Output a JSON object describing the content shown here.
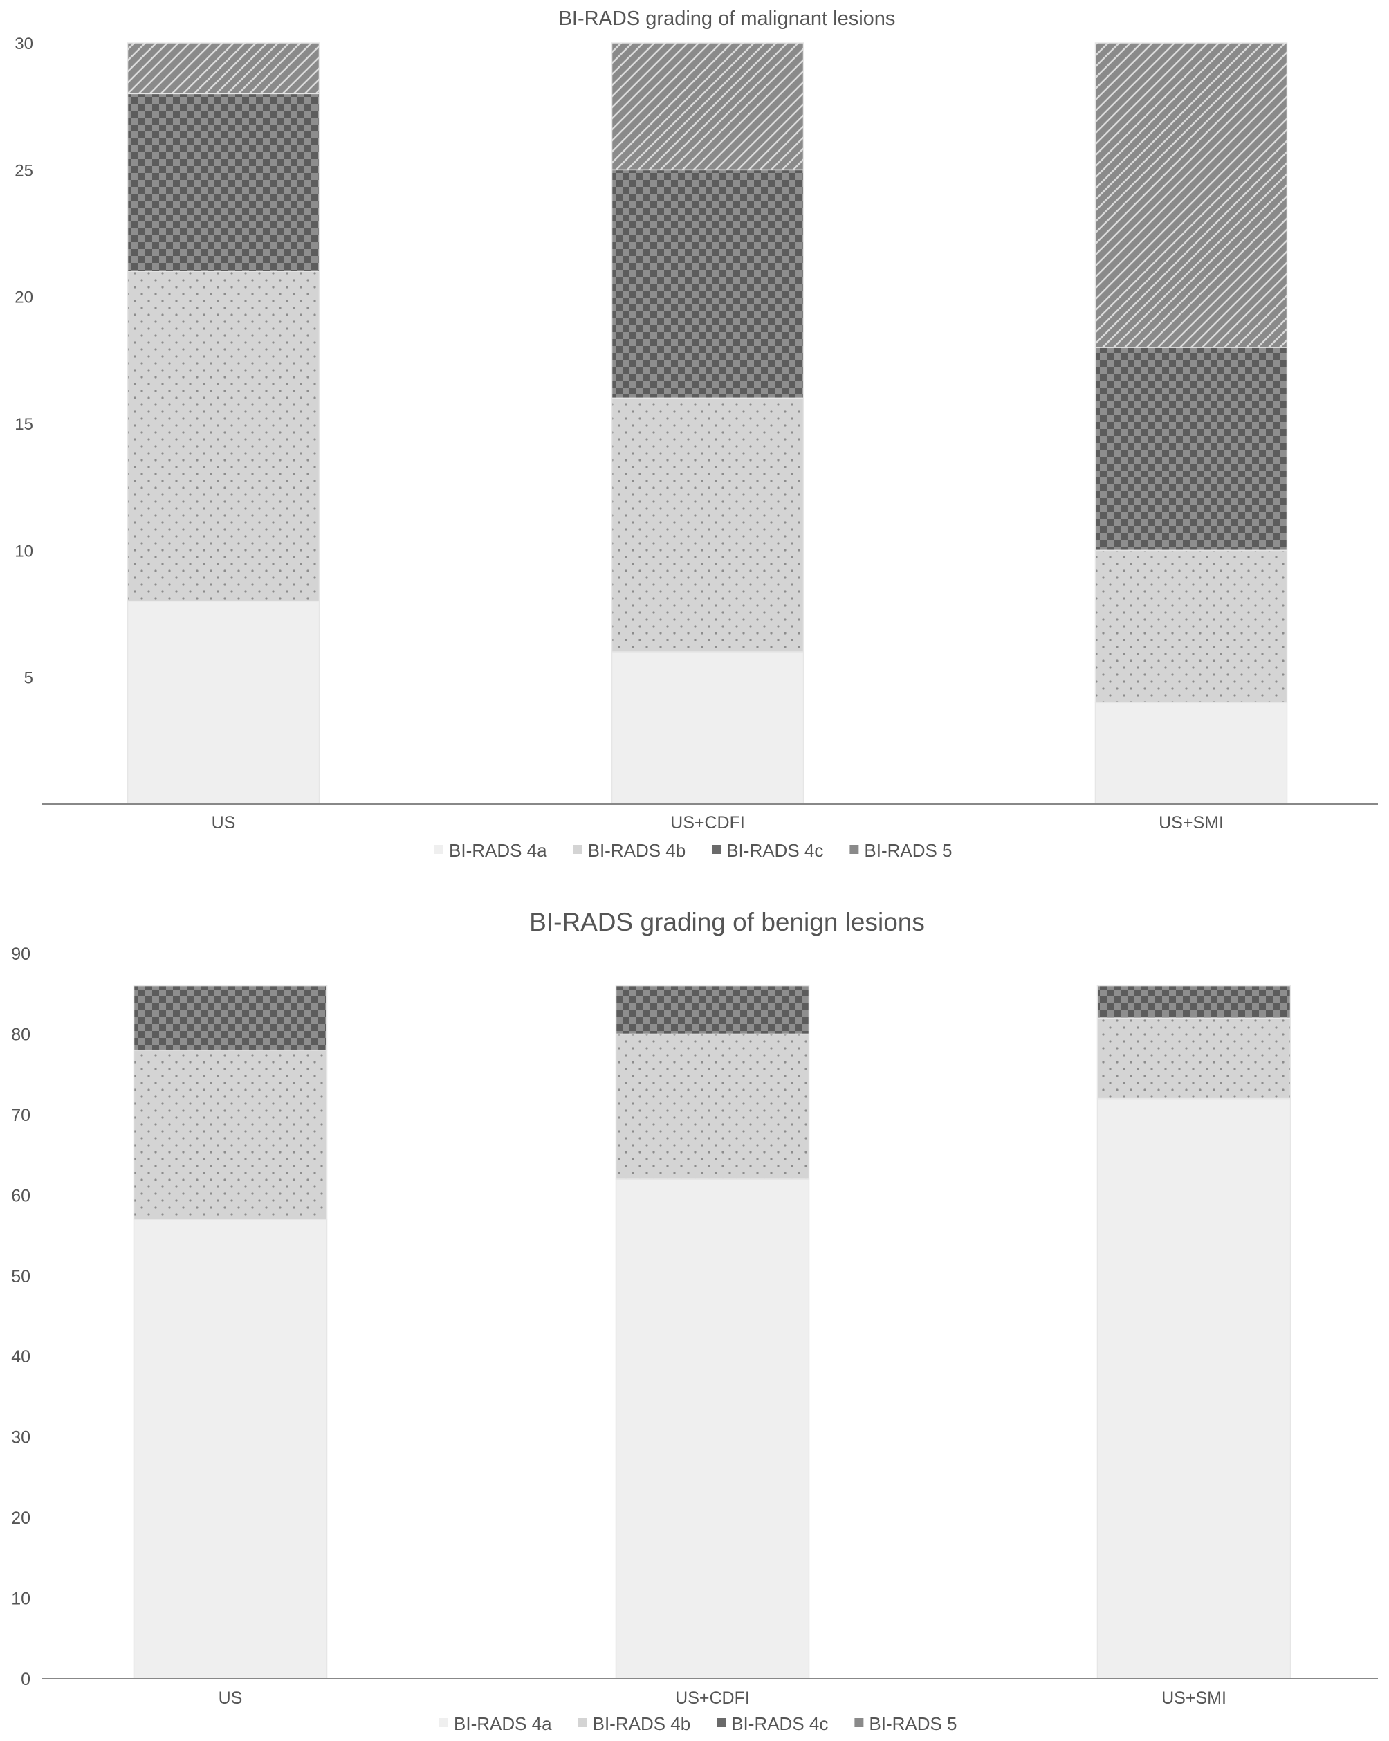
{
  "colors": {
    "bi_rads_4a": "#efefef",
    "bi_rads_4b": "#d4d4d4",
    "bi_rads_4c": "#6a6a6a",
    "bi_rads_5": "#8a8a8a",
    "axis": "#888888",
    "text": "#555555"
  },
  "chart_data": [
    {
      "type": "bar",
      "stacked": true,
      "title": "BI-RADS grading of malignant lesions",
      "xlabel": "",
      "ylabel": "",
      "categories": [
        "US",
        "US+CDFI",
        "US+SMI"
      ],
      "yticks": [
        "5",
        "10",
        "15",
        "20",
        "25",
        "30"
      ],
      "ylim": [
        0,
        30
      ],
      "grid": false,
      "legend_position": "bottom",
      "series": [
        {
          "name": "BI-RADS 4a",
          "values": [
            8,
            6,
            4
          ]
        },
        {
          "name": "BI-RADS 4b",
          "values": [
            13,
            10,
            6
          ]
        },
        {
          "name": "BI-RADS 4c",
          "values": [
            7,
            9,
            8
          ]
        },
        {
          "name": "BI-RADS 5",
          "values": [
            2,
            5,
            12
          ]
        }
      ]
    },
    {
      "type": "bar",
      "stacked": true,
      "title": "BI-RADS grading of benign lesions",
      "xlabel": "",
      "ylabel": "",
      "categories": [
        "US",
        "US+CDFI",
        "US+SMI"
      ],
      "yticks": [
        "0",
        "10",
        "20",
        "30",
        "40",
        "50",
        "60",
        "70",
        "80",
        "90"
      ],
      "ylim": [
        0,
        90
      ],
      "grid": false,
      "legend_position": "bottom",
      "series": [
        {
          "name": "BI-RADS 4a",
          "values": [
            57,
            62,
            72
          ]
        },
        {
          "name": "BI-RADS 4b",
          "values": [
            21,
            18,
            10
          ]
        },
        {
          "name": "BI-RADS 4c",
          "values": [
            8,
            6,
            4
          ]
        },
        {
          "name": "BI-RADS 5",
          "values": [
            0,
            0,
            0
          ]
        }
      ]
    }
  ]
}
